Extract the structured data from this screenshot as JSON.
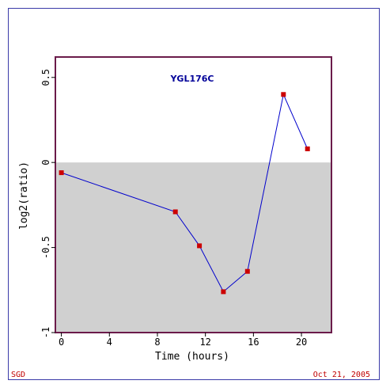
{
  "chart_data": {
    "type": "line",
    "title": "YGL176C",
    "xlabel": "Time (hours)",
    "ylabel": "log2(ratio)",
    "xlim": [
      -0.5,
      22.5
    ],
    "ylim": [
      -1,
      0.62
    ],
    "xticks": [
      0,
      4,
      8,
      12,
      16,
      20
    ],
    "xtick_labels": [
      "0",
      "4",
      "8",
      "12",
      "16",
      "20"
    ],
    "yticks": [
      0.5,
      0,
      -0.5,
      -1
    ],
    "ytick_labels": [
      "0.5",
      "0",
      "-0.5",
      "-1"
    ],
    "negative_region_fill": "#d0d0d0",
    "grid": false,
    "series": [
      {
        "x": [
          0,
          9.5,
          11.5,
          13.5,
          15.5,
          18.5,
          20.5
        ],
        "y": [
          -0.06,
          -0.29,
          -0.49,
          -0.76,
          -0.64,
          0.4,
          0.08
        ],
        "line_color": "#0000cc",
        "marker_color": "#cc0000"
      }
    ]
  },
  "footer": {
    "left": "SGD",
    "right": "Oct 21, 2005",
    "color": "#c00000"
  },
  "colors": {
    "frame_border": "#3a3aa8",
    "plot_border": "#6b1b4a",
    "title": "#000099"
  }
}
